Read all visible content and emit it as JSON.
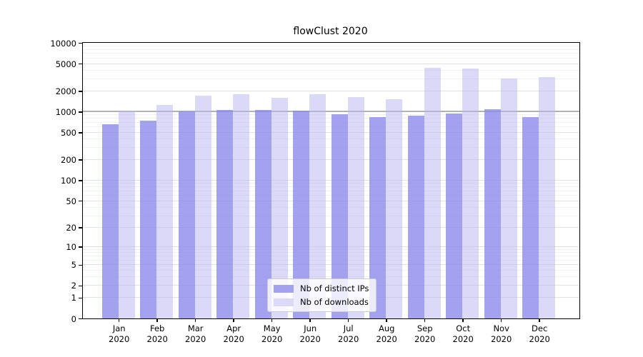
{
  "chart_data": {
    "type": "bar",
    "title": "flowClust 2020",
    "categories": [
      "Jan 2020",
      "Feb 2020",
      "Mar 2020",
      "Apr 2020",
      "May 2020",
      "Jun 2020",
      "Jul 2020",
      "Aug 2020",
      "Sep 2020",
      "Oct 2020",
      "Nov 2020",
      "Dec 2020"
    ],
    "series": [
      {
        "name": "Nb of distinct IPs",
        "color": "#a2a2ee",
        "fill": "rgba(139,139,234,0.8)",
        "values": [
          655,
          750,
          1000,
          1065,
          1060,
          1040,
          925,
          835,
          870,
          950,
          1075,
          840
        ]
      },
      {
        "name": "Nb of downloads",
        "color": "#dadaf8",
        "fill": "rgba(181,181,241,0.5)",
        "values": [
          1040,
          1260,
          1710,
          1780,
          1590,
          1785,
          1620,
          1525,
          4330,
          4280,
          3030,
          3180
        ]
      }
    ],
    "y_scale": "log10(1+v)",
    "y_ticks": [
      0,
      1,
      2,
      5,
      10,
      20,
      50,
      100,
      200,
      500,
      1000,
      2000,
      5000,
      10000
    ],
    "y_range": [
      0,
      10000
    ],
    "grid": true,
    "emphasized_gridline": 1000,
    "legend_position": "bottom-center",
    "axis_color": "#000000",
    "major_grid_color": "#e2e2e2",
    "minor_grid_color": "#f1f1f1",
    "emphasized_grid_color": "#b2b2b2"
  }
}
